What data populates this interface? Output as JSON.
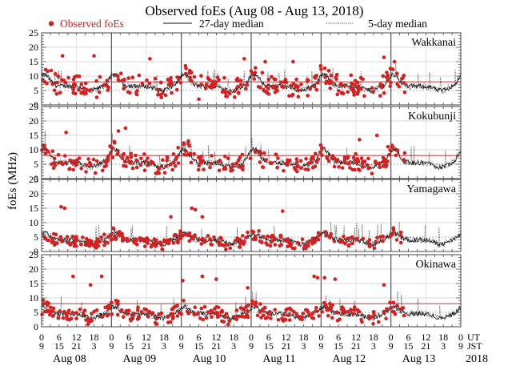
{
  "chart_data": {
    "type": "scatter",
    "title": "Observed foEs (Aug 08 - Aug 13, 2018)",
    "ylabel": "foEs (MHz)",
    "xlabel": "",
    "ylim": [
      0,
      25
    ],
    "yticks": [
      0,
      5,
      10,
      15,
      20,
      25
    ],
    "x_days": 6,
    "x_ticks_ut": [
      "0",
      "6",
      "12",
      "18"
    ],
    "x_ticks_jst": [
      "9",
      "15",
      "21",
      "3"
    ],
    "x_final_tick_ut": "0",
    "x_final_tick_jst": "9",
    "row_label_ut": "UT",
    "row_label_jst": "JST",
    "day_labels": [
      "Aug 08",
      "Aug 09",
      "Aug 10",
      "Aug 11",
      "Aug 12",
      "Aug 13"
    ],
    "year_label": "2018",
    "legend": {
      "placement": "top",
      "entries": [
        {
          "label": "Observed foEs",
          "style": "red-dot",
          "color": "#d42020"
        },
        {
          "label": "27-day median",
          "style": "solid",
          "color": "#111111"
        },
        {
          "label": "5-day median",
          "style": "dotted",
          "color": "#333333"
        }
      ]
    },
    "grid": true,
    "observed_end_day": 5.2,
    "reference_line_color": "#c0504d",
    "stations": [
      {
        "name": "Wakkanai",
        "reference_line": 8,
        "base": 6.5,
        "daytime_peak": 5,
        "obs_spread": 3.5,
        "outliers": [
          [
            0.3,
            17
          ],
          [
            0.75,
            17
          ],
          [
            1.55,
            16
          ],
          [
            2.25,
            2
          ],
          [
            2.9,
            16
          ],
          [
            3.2,
            15
          ],
          [
            3.6,
            15
          ],
          [
            4.9,
            16.5
          ],
          [
            5.05,
            15
          ]
        ]
      },
      {
        "name": "Kokubunji",
        "reference_line": 8,
        "base": 5.5,
        "daytime_peak": 6,
        "obs_spread": 3,
        "outliers": [
          [
            0.35,
            16
          ],
          [
            1.1,
            16.5
          ],
          [
            1.2,
            17.5
          ],
          [
            4.55,
            13.5
          ],
          [
            4.8,
            15
          ],
          [
            2.1,
            13
          ]
        ]
      },
      {
        "name": "Yamagawa",
        "reference_line": null,
        "base": 4,
        "daytime_peak": 3,
        "obs_spread": 2,
        "outliers": [
          [
            0.28,
            15.5
          ],
          [
            0.33,
            15
          ],
          [
            2.15,
            15
          ],
          [
            2.2,
            14.5
          ],
          [
            2.3,
            12
          ],
          [
            3.45,
            14
          ],
          [
            1.85,
            12
          ]
        ]
      },
      {
        "name": "Okinawa",
        "reference_line": 8,
        "base": 4.5,
        "daytime_peak": 3,
        "obs_spread": 2.5,
        "outliers": [
          [
            0.45,
            17.5
          ],
          [
            0.86,
            17.5
          ],
          [
            0.7,
            14.5
          ],
          [
            2.02,
            16
          ],
          [
            2.3,
            17.5
          ],
          [
            2.5,
            16.5
          ],
          [
            2.95,
            13.5
          ],
          [
            3.9,
            17.5
          ],
          [
            3.95,
            17
          ],
          [
            4.05,
            17
          ],
          [
            4.2,
            16.5
          ],
          [
            4.9,
            14.5
          ]
        ]
      }
    ]
  }
}
